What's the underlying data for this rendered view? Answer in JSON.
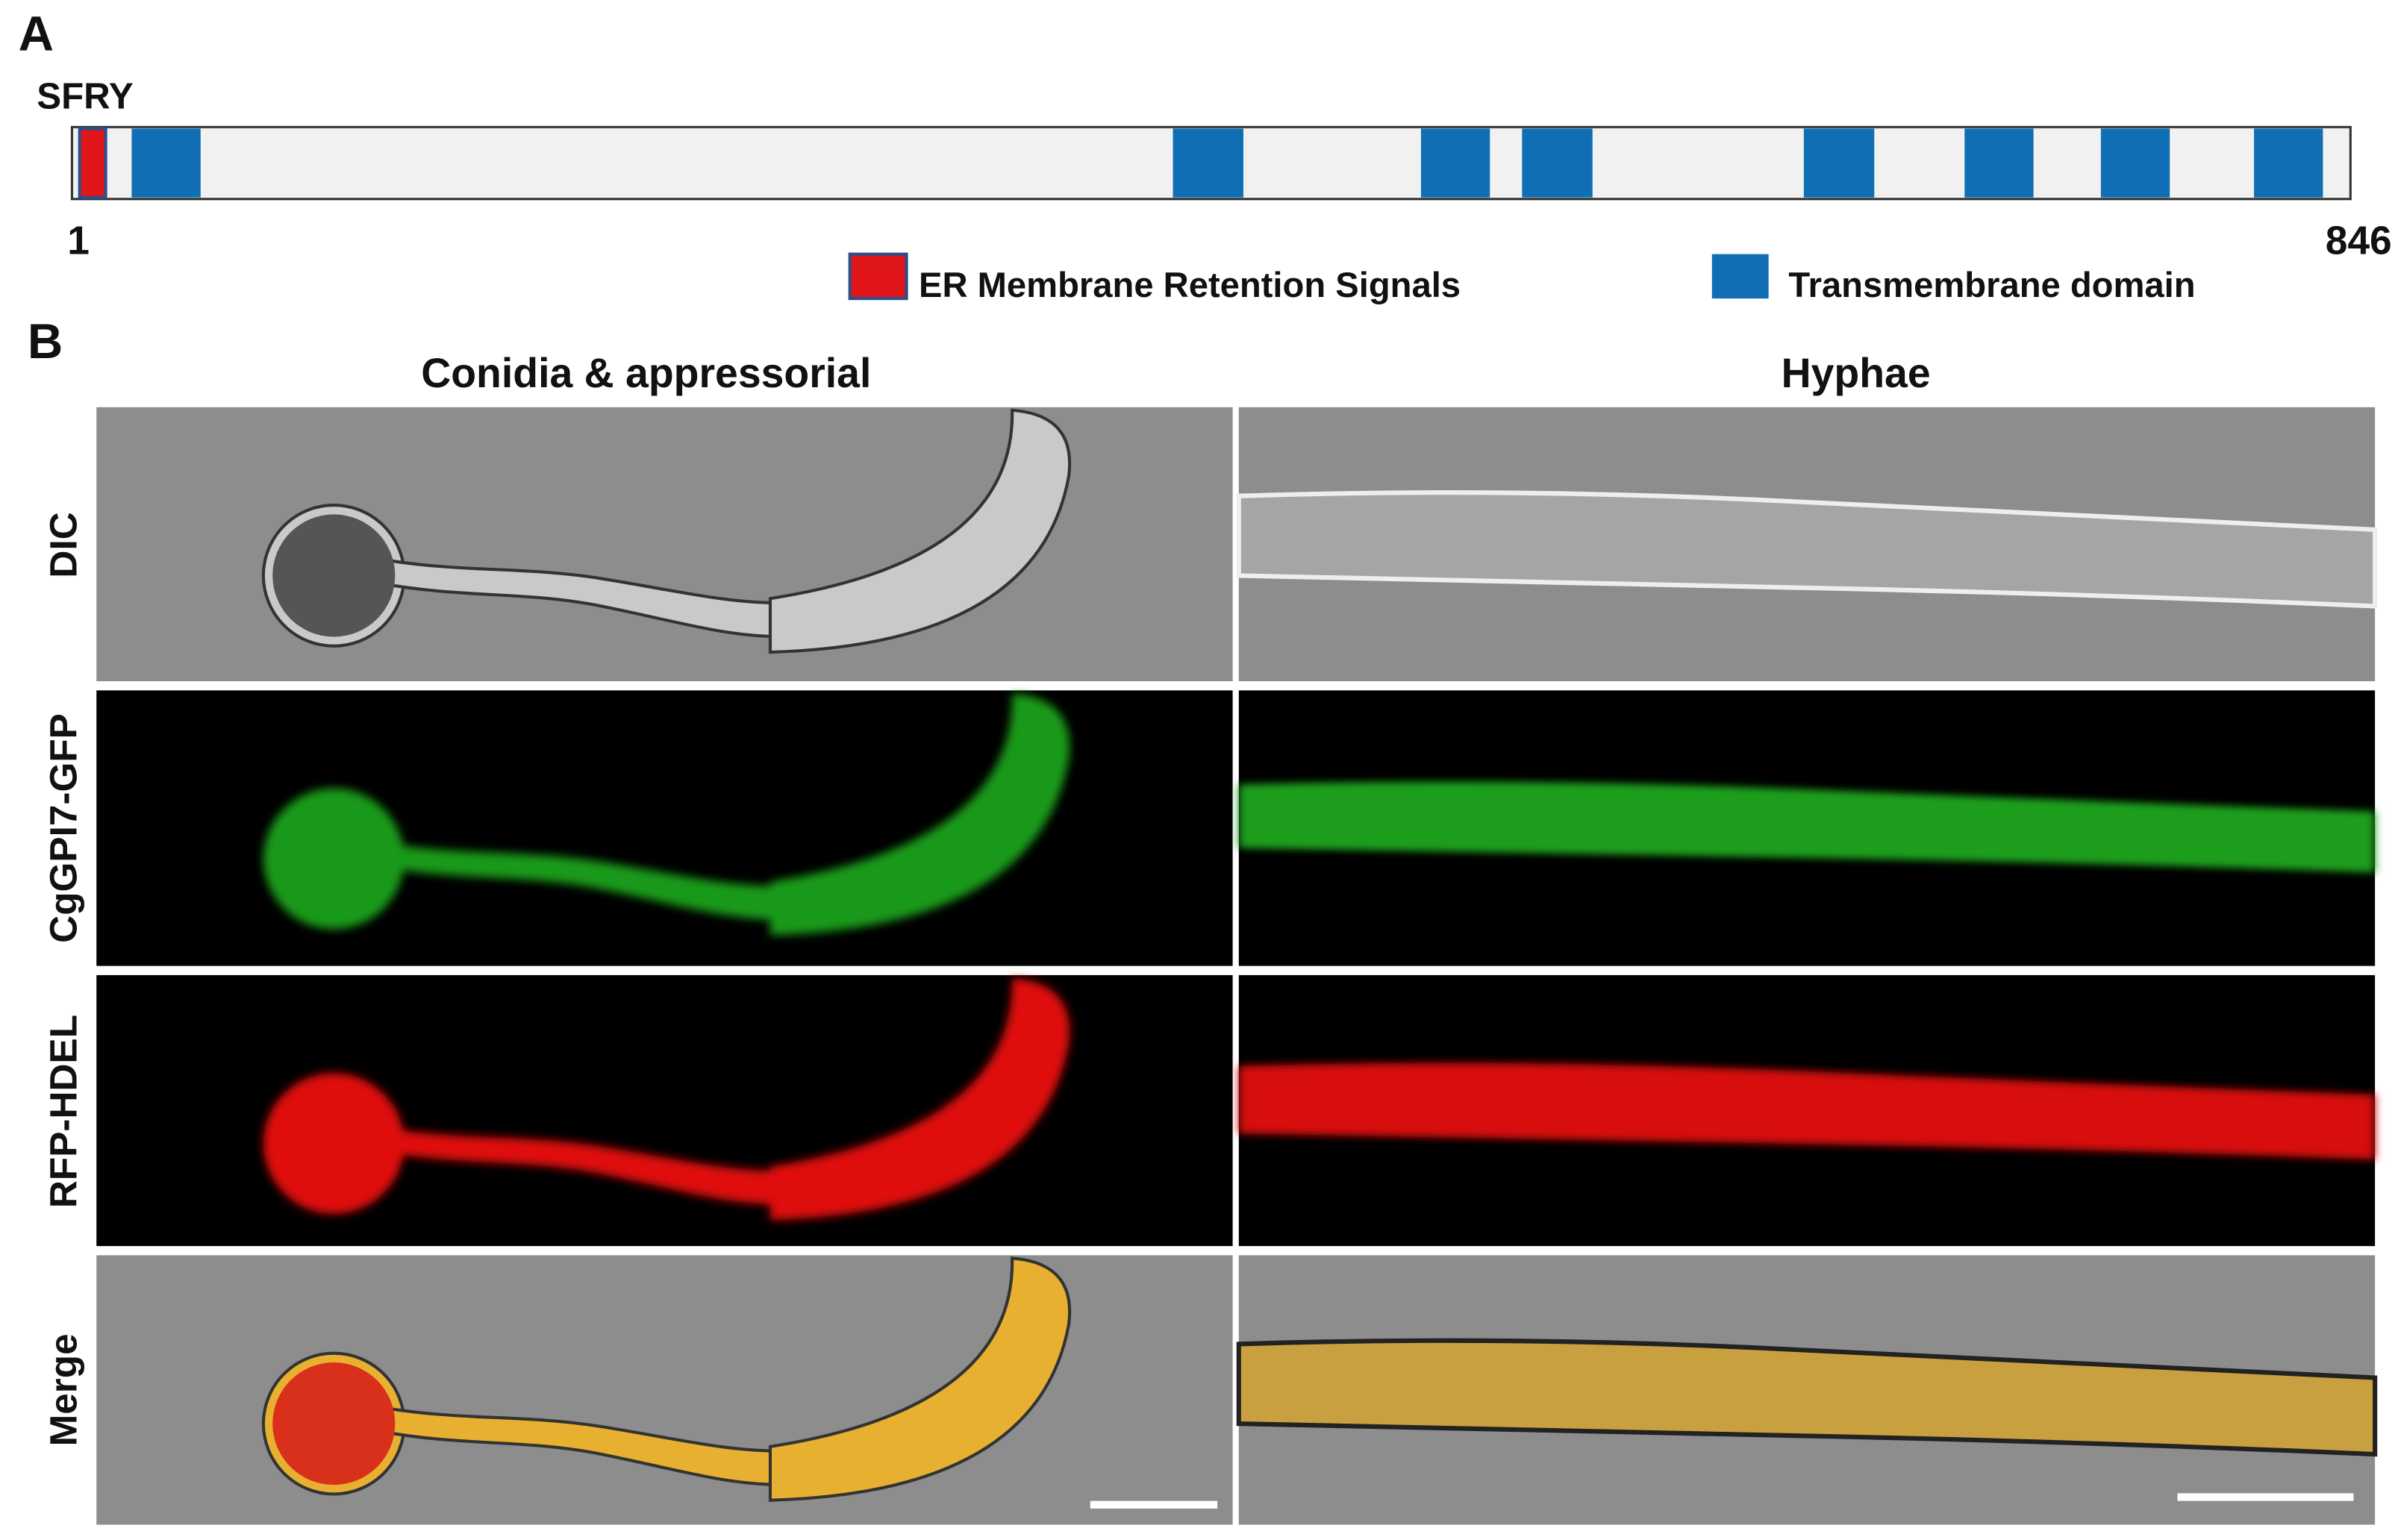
{
  "panel_a": {
    "label": "A",
    "motif": "SFRY",
    "start": "1",
    "end": "846",
    "legend": [
      "ER Membrane Retention Signals",
      "Transmembrane domain"
    ]
  },
  "panel_b": {
    "label": "B",
    "columns": [
      "Conidia & appressorial",
      "Hyphae"
    ],
    "rows": [
      "DIC",
      "CgGPI7-GFP",
      "RFP-HDEL",
      "Merge"
    ]
  }
}
